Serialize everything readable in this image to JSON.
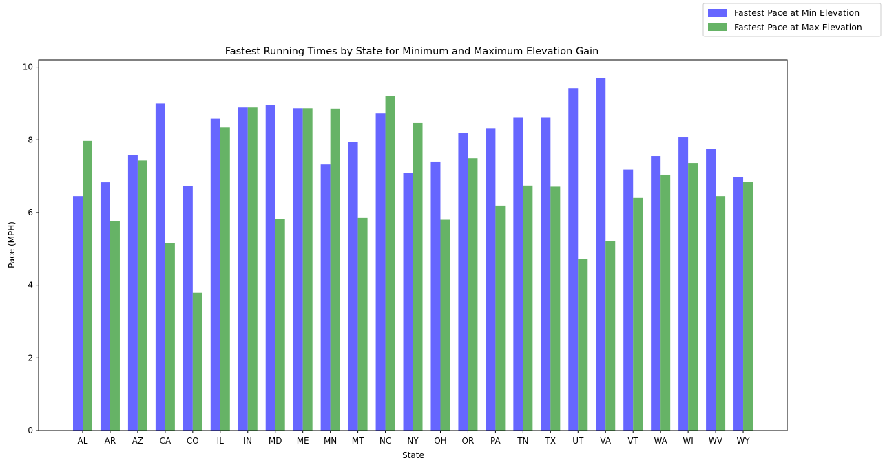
{
  "chart_data": {
    "type": "bar",
    "title": "Fastest Running Times by State for Minimum and Maximum Elevation Gain",
    "xlabel": "State",
    "ylabel": "Pace (MPH)",
    "ylim": [
      0,
      10.2
    ],
    "yticks": [
      0,
      2,
      4,
      6,
      8,
      10
    ],
    "grid": false,
    "legend_position": "top-right",
    "categories": [
      "AL",
      "AR",
      "AZ",
      "CA",
      "CO",
      "IL",
      "IN",
      "MD",
      "ME",
      "MN",
      "MT",
      "NC",
      "NY",
      "OH",
      "OR",
      "PA",
      "TN",
      "TX",
      "UT",
      "VA",
      "VT",
      "WA",
      "WI",
      "WV",
      "WY"
    ],
    "series": [
      {
        "name": "Fastest Pace at Min Elevation",
        "color": "#6666ff",
        "values": [
          6.45,
          6.83,
          7.57,
          9.0,
          6.73,
          8.58,
          8.89,
          8.96,
          8.87,
          7.32,
          7.94,
          8.72,
          7.09,
          7.4,
          8.19,
          8.32,
          8.62,
          8.62,
          9.42,
          9.7,
          7.18,
          7.55,
          8.08,
          7.75,
          6.98
        ]
      },
      {
        "name": "Fastest Pace at Max Elevation",
        "color": "#66b366",
        "values": [
          7.97,
          5.77,
          7.43,
          5.15,
          3.79,
          8.34,
          8.89,
          5.82,
          8.87,
          8.86,
          5.85,
          9.21,
          8.46,
          5.8,
          7.49,
          6.19,
          6.74,
          6.71,
          4.73,
          5.22,
          6.4,
          7.04,
          7.36,
          6.45,
          6.85
        ]
      }
    ]
  }
}
